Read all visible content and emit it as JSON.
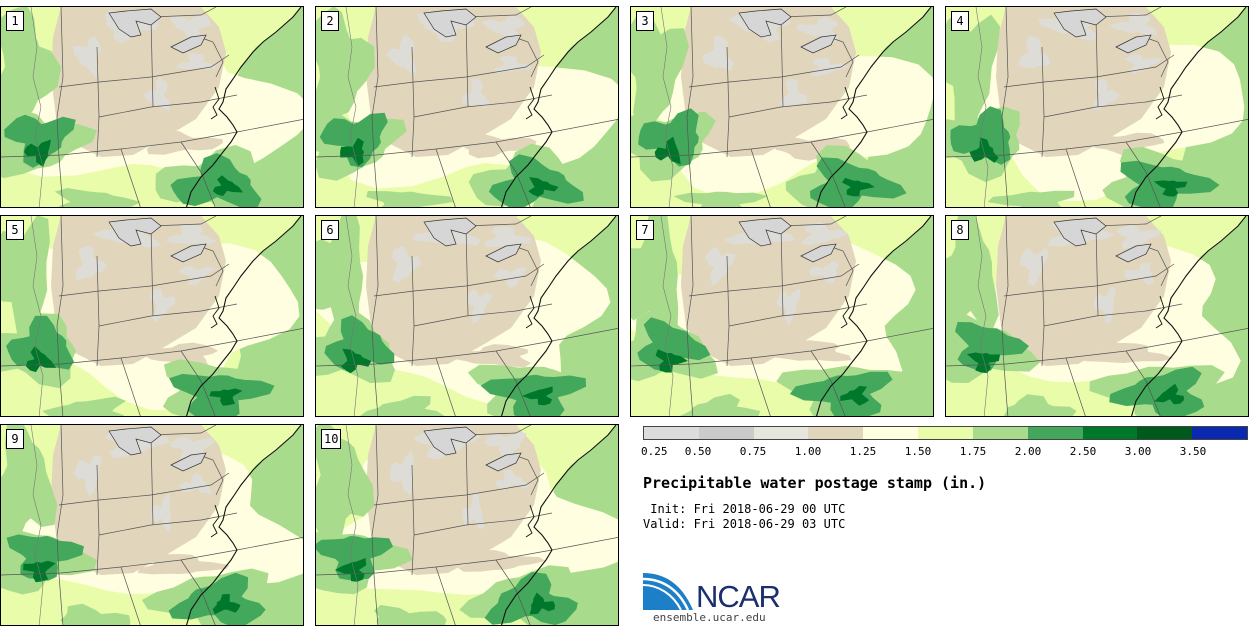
{
  "stamps": [
    {
      "label": "1"
    },
    {
      "label": "2"
    },
    {
      "label": "3"
    },
    {
      "label": "4"
    },
    {
      "label": "5"
    },
    {
      "label": "6"
    },
    {
      "label": "7"
    },
    {
      "label": "8"
    },
    {
      "label": "9"
    },
    {
      "label": "10"
    }
  ],
  "colorbar": {
    "colors": [
      "#dcdcdc",
      "#cbcbcb",
      "#e6e6dc",
      "#e1d5bb",
      "#fffee0",
      "#e8fcaa",
      "#a8dc8c",
      "#44a85c",
      "#00782c",
      "#005a1e",
      "#0a28b0"
    ],
    "ticks": [
      "0.25",
      "0.50",
      "0.75",
      "1.00",
      "1.25",
      "1.50",
      "1.75",
      "2.00",
      "2.50",
      "3.00",
      "3.50"
    ]
  },
  "title": "Precipitable water postage stamp (in.)",
  "init_line": " Init: Fri 2018-06-29 00 UTC",
  "valid_line": "Valid: Fri 2018-06-29 03 UTC",
  "logo": {
    "text": "NCAR",
    "url": "ensemble.ucar.edu",
    "colors": {
      "blue": "#1d7fc7",
      "navy": "#1a2f6c"
    }
  },
  "map_colors": {
    "dry": "#e1d5bb",
    "very_dry": "#dedcd6",
    "moist": "#fffee0",
    "wet": "#e8fcaa",
    "wetter": "#a8dc8c",
    "very_wet": "#44a85c",
    "extreme": "#00782c"
  }
}
